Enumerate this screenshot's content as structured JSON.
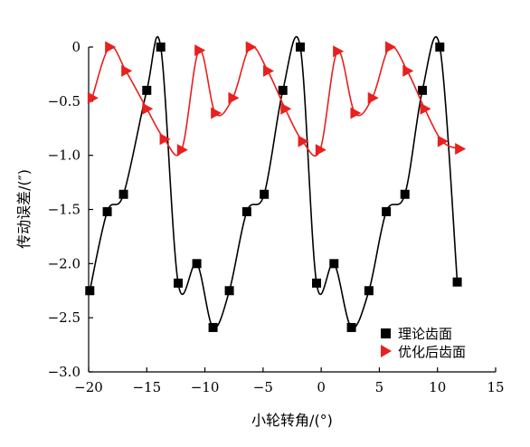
{
  "chart_data": {
    "type": "line",
    "title": "",
    "xlabel": "小轮转角/(°)",
    "ylabel": "传动误差/(″)",
    "xlim": [
      -20,
      15
    ],
    "ylim": [
      -3.0,
      0
    ],
    "xticks": [
      -20,
      -15,
      -10,
      -5,
      0,
      5,
      10,
      15
    ],
    "yticks": [
      0,
      -0.5,
      -1.0,
      -1.5,
      -2.0,
      -2.5,
      -3.0
    ],
    "xtick_labels": [
      "−20",
      "−15",
      "−10",
      "−5",
      "0",
      "5",
      "10",
      "15"
    ],
    "ytick_labels": [
      "0",
      "−0.5",
      "−1.0",
      "−1.5",
      "−2.0",
      "−2.5",
      "−3.0"
    ],
    "grid": false,
    "legend_position": "bottom-right",
    "series": [
      {
        "name": "理论齿面",
        "marker": "square",
        "color": "#000000",
        "x": [
          -19.9,
          -18.4,
          -17.0,
          -15.0,
          -13.8,
          -12.3,
          -10.7,
          -9.3,
          -7.9,
          -6.4,
          -4.9,
          -3.3,
          -1.8,
          -0.4,
          1.1,
          2.6,
          4.1,
          5.6,
          7.2,
          8.7,
          10.2,
          11.7
        ],
        "y": [
          -2.25,
          -1.52,
          -1.36,
          -0.4,
          0.0,
          -2.18,
          -2.0,
          -2.59,
          -2.25,
          -1.52,
          -1.36,
          -0.4,
          0.0,
          -2.18,
          -2.0,
          -2.59,
          -2.25,
          -1.52,
          -1.36,
          -0.4,
          0.0,
          -2.17
        ]
      },
      {
        "name": "优化后齿面",
        "marker": "triangle-right",
        "color": "#e8201e",
        "x": [
          -19.7,
          -18.2,
          -16.8,
          -15.0,
          -13.5,
          -12.0,
          -10.5,
          -9.1,
          -7.6,
          -6.1,
          -4.6,
          -3.1,
          -1.6,
          -0.1,
          1.4,
          2.9,
          4.4,
          5.9,
          7.4,
          8.9,
          10.4,
          11.9
        ],
        "y": [
          -0.47,
          0.0,
          -0.22,
          -0.57,
          -0.85,
          -0.95,
          -0.03,
          -0.61,
          -0.47,
          0.0,
          -0.22,
          -0.57,
          -0.87,
          -0.95,
          -0.04,
          -0.61,
          -0.47,
          0.0,
          -0.22,
          -0.57,
          -0.87,
          -0.94
        ]
      }
    ]
  }
}
